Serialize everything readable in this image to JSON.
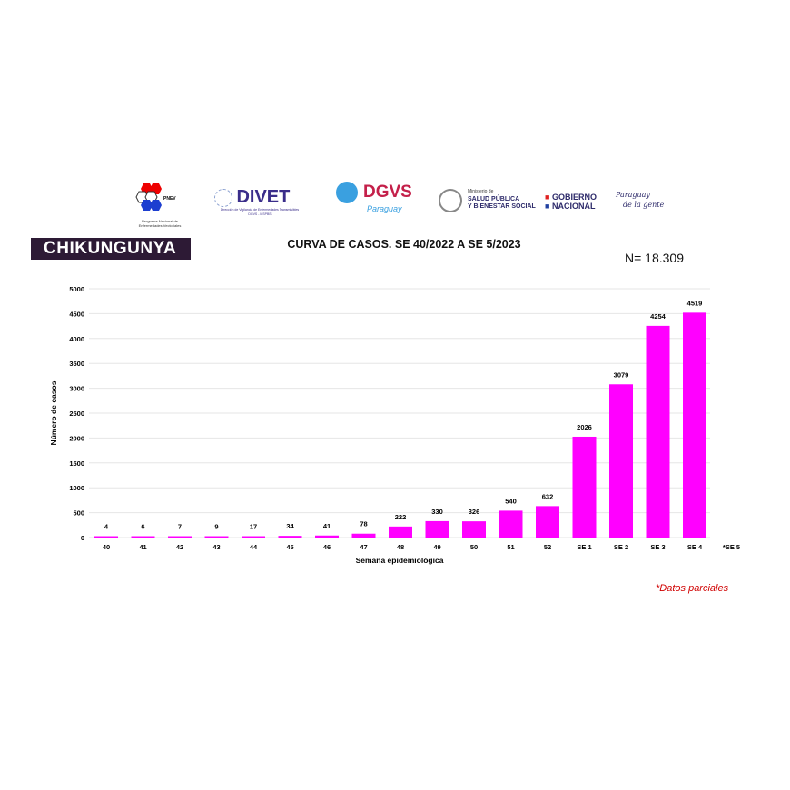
{
  "logos": {
    "pnev": {
      "badge": "PNEV",
      "caption1": "Programa Nacional de",
      "caption2": "Enfermedades Vectoriales"
    },
    "divet": {
      "name": "DIVET",
      "caption1": "Dirección de Vigilancia de Enfermedades Transmisibles",
      "caption2": "DGVS - MSPBS"
    },
    "dgvs": {
      "name": "DGVS",
      "script": "Paraguay"
    },
    "ministerio": {
      "line0": "Ministerio de",
      "line1": "SALUD PÚBLICA",
      "line2": "Y BIENESTAR SOCIAL"
    },
    "gobierno": {
      "line1": "GOBIERNO",
      "line2": "NACIONAL"
    },
    "paraguay": {
      "line1": "Paraguay",
      "line2": "de la gente"
    }
  },
  "banner": "CHIKUNGUNYA",
  "n_total": "N= 18.309",
  "note": "*Datos parciales",
  "colors": {
    "bar": "#ff00ff",
    "banner": "#2d1a35",
    "note": "#d00000"
  },
  "chart_data": {
    "type": "bar",
    "title": "CURVA DE CASOS. SE 40/2022 A SE 5/2023",
    "xlabel": "Semana epidemiológica",
    "ylabel": "Número de casos",
    "categories": [
      "40",
      "41",
      "42",
      "43",
      "44",
      "45",
      "46",
      "47",
      "48",
      "49",
      "50",
      "51",
      "52",
      "SE 1",
      "SE 2",
      "SE 3",
      "SE 4",
      "*SE 5"
    ],
    "values": [
      4,
      6,
      7,
      9,
      17,
      34,
      41,
      78,
      222,
      330,
      326,
      540,
      632,
      2026,
      3079,
      4254,
      4519,
      null
    ],
    "ylim": [
      0,
      5000
    ],
    "yticks": [
      0,
      500,
      1000,
      1500,
      2000,
      2500,
      3000,
      3500,
      4000,
      4500,
      5000
    ],
    "grid": true
  }
}
